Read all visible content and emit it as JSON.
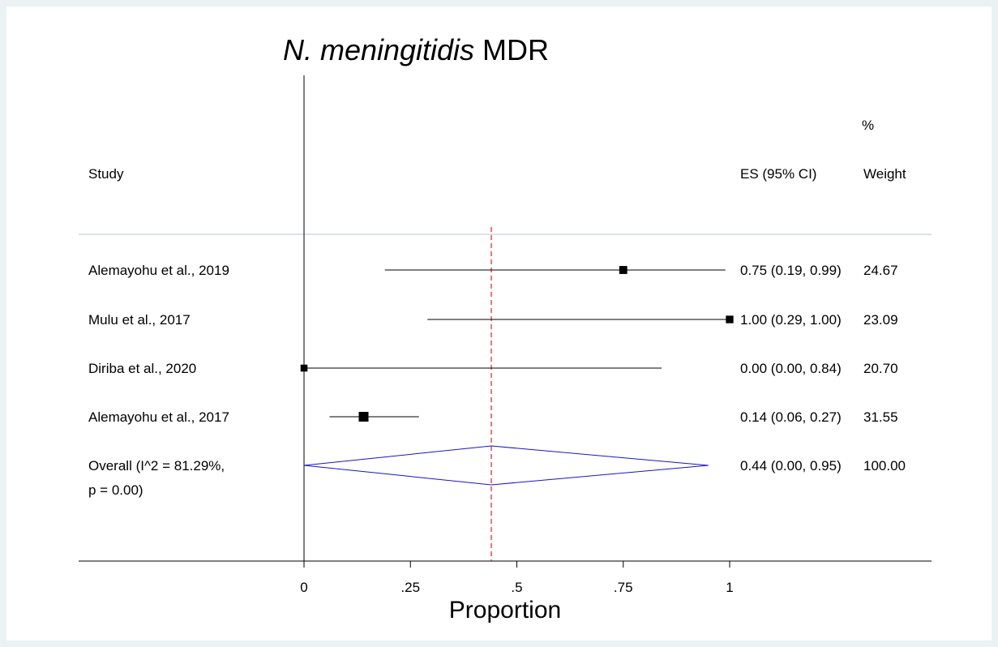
{
  "chart_data": {
    "type": "forest",
    "title_italic": "N. meningitidis",
    "title_rest": " MDR",
    "xlabel": "Proportion",
    "xlim": [
      0,
      1
    ],
    "ticks": [
      {
        "value": 0,
        "label": "0"
      },
      {
        "value": 0.25,
        "label": ".25"
      },
      {
        "value": 0.5,
        "label": ".5"
      },
      {
        "value": 0.75,
        "label": ".75"
      },
      {
        "value": 1,
        "label": "1"
      }
    ],
    "header": {
      "study": "Study",
      "es": "ES (95% CI)",
      "weight_pct": "%",
      "weight": "Weight"
    },
    "studies": [
      {
        "label": "Alemayohu et al., 2019",
        "es": 0.75,
        "lo": 0.19,
        "hi": 0.99,
        "es_text": "0.75 (0.19, 0.99)",
        "weight": "24.67"
      },
      {
        "label": "Mulu et al., 2017",
        "es": 1.0,
        "lo": 0.29,
        "hi": 1.0,
        "es_text": "1.00 (0.29, 1.00)",
        "weight": "23.09"
      },
      {
        "label": "Diriba et al., 2020",
        "es": 0.0,
        "lo": 0.0,
        "hi": 0.84,
        "es_text": "0.00 (0.00, 0.84)",
        "weight": "20.70"
      },
      {
        "label": "Alemayohu et al., 2017",
        "es": 0.14,
        "lo": 0.06,
        "hi": 0.27,
        "es_text": "0.14 (0.06, 0.27)",
        "weight": "31.55"
      }
    ],
    "overall": {
      "label_line1": "Overall  (I^2 = 81.29%,",
      "label_line2": "p = 0.00)",
      "es": 0.44,
      "lo": 0.0,
      "hi": 0.95,
      "es_text": "0.44 (0.00, 0.95)",
      "weight": "100.00"
    },
    "colors": {
      "background": "#eaf2f3",
      "diamond": "#1515c8",
      "reference_line": "#e02020",
      "separator": "#c8d2dc"
    }
  }
}
